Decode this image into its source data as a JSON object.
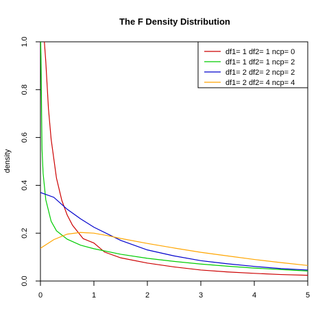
{
  "chart_data": {
    "type": "line",
    "title": "The F Density Distribution",
    "xlabel": "",
    "ylabel": "density",
    "xlim": [
      0,
      5
    ],
    "ylim": [
      0,
      1
    ],
    "x_ticks": [
      "0",
      "1",
      "2",
      "3",
      "4",
      "5"
    ],
    "y_ticks": [
      "0.0",
      "0.2",
      "0.4",
      "0.6",
      "0.8",
      "1.0"
    ],
    "grid": false,
    "legend_position": "top-right",
    "series": [
      {
        "name": "df1= 1 df2= 1  ncp= 0",
        "color": "#cc0000",
        "x": [
          0.1,
          0.15,
          0.2,
          0.3,
          0.4,
          0.5,
          0.6,
          0.8,
          1.0,
          1.2,
          1.5,
          2.0,
          2.5,
          3.0,
          3.5,
          4.0,
          4.5,
          5.0
        ],
        "y": [
          0.917,
          0.72,
          0.593,
          0.43,
          0.337,
          0.276,
          0.233,
          0.177,
          0.159,
          0.121,
          0.097,
          0.075,
          0.059,
          0.046,
          0.038,
          0.032,
          0.027,
          0.024
        ]
      },
      {
        "name": "df1= 1 df2= 1  ncp= 2",
        "color": "#00cc00",
        "x": [
          0.01,
          0.03,
          0.05,
          0.1,
          0.2,
          0.3,
          0.5,
          0.75,
          1.0,
          1.5,
          2.0,
          2.5,
          3.0,
          3.5,
          4.0,
          4.5,
          5.0
        ],
        "y": [
          0.94,
          0.55,
          0.45,
          0.34,
          0.25,
          0.21,
          0.175,
          0.15,
          0.135,
          0.112,
          0.095,
          0.082,
          0.071,
          0.062,
          0.054,
          0.048,
          0.042
        ]
      },
      {
        "name": "df1= 2 df2= 2  ncp= 2",
        "color": "#0000cc",
        "x": [
          0.0,
          0.25,
          0.5,
          0.75,
          1.0,
          1.5,
          2.0,
          2.5,
          3.0,
          3.5,
          4.0,
          4.5,
          5.0
        ],
        "y": [
          0.37,
          0.35,
          0.3,
          0.26,
          0.225,
          0.17,
          0.13,
          0.105,
          0.085,
          0.072,
          0.061,
          0.052,
          0.046
        ]
      },
      {
        "name": "df1= 2 df2= 4  ncp= 4",
        "color": "#ffa500",
        "x": [
          0.0,
          0.25,
          0.5,
          0.75,
          1.0,
          1.25,
          1.5,
          2.0,
          2.5,
          3.0,
          3.5,
          4.0,
          4.5,
          5.0
        ],
        "y": [
          0.137,
          0.173,
          0.196,
          0.203,
          0.2,
          0.19,
          0.178,
          0.157,
          0.138,
          0.12,
          0.105,
          0.09,
          0.077,
          0.065
        ]
      }
    ]
  }
}
